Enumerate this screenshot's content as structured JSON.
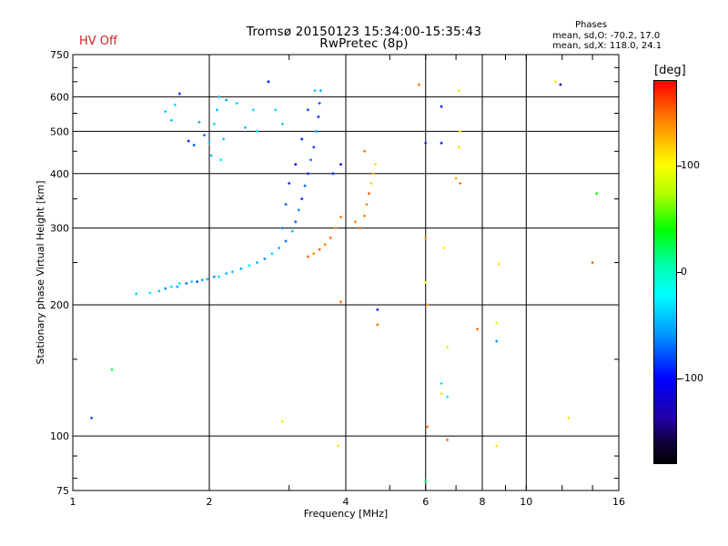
{
  "header": {
    "title_line1": "Tromsø 20150123 15:34:00-15:35:43",
    "title_line2": "RwPretec (8p)",
    "hv_status": "HV Off",
    "phases_label": "Phases",
    "phases_o": "mean, sd,O: -70.2, 17.0",
    "phases_x": "mean, sd,X: 118.0, 24.1"
  },
  "colorbar": {
    "unit": "[deg]",
    "ticks": [
      "100",
      "0",
      "-100"
    ],
    "tick_values": [
      100,
      0,
      -100
    ],
    "range": [
      -180,
      180
    ]
  },
  "colors": {
    "hv_status": "#d42020",
    "grid": "#000000"
  },
  "chart_data": {
    "type": "scatter",
    "title": "Tromsø 20150123 15:34:00-15:35:43",
    "subtitle": "RwPretec (8p)",
    "xlabel": "Frequency [MHz]",
    "ylabel": "Stationary phase Virtual Height [km]",
    "xscale": "log",
    "yscale": "log",
    "xlim": [
      1,
      16
    ],
    "ylim": [
      75,
      750
    ],
    "xticks": [
      1,
      2,
      4,
      6,
      8,
      10,
      16
    ],
    "yticks": [
      75,
      100,
      200,
      300,
      400,
      500,
      600,
      750
    ],
    "xgrid": [
      2,
      4,
      6,
      8,
      10
    ],
    "ygrid": [
      100,
      200,
      300,
      400,
      500,
      600
    ],
    "color_by": "phase [deg]",
    "points": [
      {
        "x": 1.38,
        "y": 212,
        "c": -40
      },
      {
        "x": 1.48,
        "y": 213,
        "c": -30
      },
      {
        "x": 1.55,
        "y": 215,
        "c": -45
      },
      {
        "x": 1.6,
        "y": 218,
        "c": -60
      },
      {
        "x": 1.65,
        "y": 220,
        "c": -35
      },
      {
        "x": 1.7,
        "y": 220,
        "c": -50
      },
      {
        "x": 1.72,
        "y": 224,
        "c": -30
      },
      {
        "x": 1.78,
        "y": 224,
        "c": -70
      },
      {
        "x": 1.83,
        "y": 226,
        "c": -40
      },
      {
        "x": 1.88,
        "y": 226,
        "c": -80
      },
      {
        "x": 1.93,
        "y": 228,
        "c": -55
      },
      {
        "x": 1.98,
        "y": 229,
        "c": -45
      },
      {
        "x": 2.05,
        "y": 232,
        "c": -60
      },
      {
        "x": 2.1,
        "y": 232,
        "c": -35
      },
      {
        "x": 2.18,
        "y": 236,
        "c": -50
      },
      {
        "x": 2.25,
        "y": 238,
        "c": -40
      },
      {
        "x": 2.35,
        "y": 242,
        "c": -55
      },
      {
        "x": 2.45,
        "y": 246,
        "c": -30
      },
      {
        "x": 2.55,
        "y": 250,
        "c": -45
      },
      {
        "x": 2.65,
        "y": 255,
        "c": -60
      },
      {
        "x": 2.75,
        "y": 262,
        "c": -35
      },
      {
        "x": 2.85,
        "y": 270,
        "c": -50
      },
      {
        "x": 2.95,
        "y": 280,
        "c": -70
      },
      {
        "x": 3.05,
        "y": 295,
        "c": -45
      },
      {
        "x": 3.1,
        "y": 310,
        "c": -80
      },
      {
        "x": 3.15,
        "y": 330,
        "c": -60
      },
      {
        "x": 3.2,
        "y": 350,
        "c": -90
      },
      {
        "x": 3.25,
        "y": 375,
        "c": -75
      },
      {
        "x": 3.3,
        "y": 400,
        "c": -95
      },
      {
        "x": 3.35,
        "y": 430,
        "c": -70
      },
      {
        "x": 3.4,
        "y": 460,
        "c": -85
      },
      {
        "x": 3.45,
        "y": 500,
        "c": -60
      },
      {
        "x": 3.48,
        "y": 540,
        "c": -90
      },
      {
        "x": 3.5,
        "y": 580,
        "c": -75
      },
      {
        "x": 3.52,
        "y": 620,
        "c": -50
      },
      {
        "x": 3.42,
        "y": 620,
        "c": -40
      },
      {
        "x": 3.3,
        "y": 560,
        "c": -80
      },
      {
        "x": 3.2,
        "y": 480,
        "c": -95
      },
      {
        "x": 3.1,
        "y": 420,
        "c": -100
      },
      {
        "x": 3.0,
        "y": 380,
        "c": -85
      },
      {
        "x": 2.95,
        "y": 340,
        "c": -75
      },
      {
        "x": 2.9,
        "y": 300,
        "c": -65
      },
      {
        "x": 1.6,
        "y": 555,
        "c": -40
      },
      {
        "x": 1.65,
        "y": 530,
        "c": -45
      },
      {
        "x": 1.68,
        "y": 575,
        "c": -35
      },
      {
        "x": 1.72,
        "y": 610,
        "c": -90
      },
      {
        "x": 1.8,
        "y": 475,
        "c": -95
      },
      {
        "x": 1.85,
        "y": 465,
        "c": -80
      },
      {
        "x": 1.9,
        "y": 525,
        "c": -50
      },
      {
        "x": 1.95,
        "y": 490,
        "c": -70
      },
      {
        "x": 2.0,
        "y": 470,
        "c": -45
      },
      {
        "x": 2.02,
        "y": 440,
        "c": -40
      },
      {
        "x": 2.05,
        "y": 520,
        "c": -35
      },
      {
        "x": 2.08,
        "y": 560,
        "c": -45
      },
      {
        "x": 2.1,
        "y": 600,
        "c": -50
      },
      {
        "x": 2.12,
        "y": 430,
        "c": -30
      },
      {
        "x": 2.15,
        "y": 480,
        "c": -40
      },
      {
        "x": 2.18,
        "y": 590,
        "c": -55
      },
      {
        "x": 2.3,
        "y": 580,
        "c": -40
      },
      {
        "x": 2.4,
        "y": 510,
        "c": -45
      },
      {
        "x": 2.5,
        "y": 560,
        "c": -35
      },
      {
        "x": 2.55,
        "y": 500,
        "c": -40
      },
      {
        "x": 2.7,
        "y": 650,
        "c": -100
      },
      {
        "x": 2.8,
        "y": 560,
        "c": -40
      },
      {
        "x": 2.9,
        "y": 520,
        "c": -45
      },
      {
        "x": 3.3,
        "y": 258,
        "c": 150
      },
      {
        "x": 3.4,
        "y": 262,
        "c": 140
      },
      {
        "x": 3.5,
        "y": 268,
        "c": 155
      },
      {
        "x": 3.6,
        "y": 275,
        "c": 145
      },
      {
        "x": 3.7,
        "y": 285,
        "c": 150
      },
      {
        "x": 3.8,
        "y": 300,
        "c": 140
      },
      {
        "x": 3.9,
        "y": 318,
        "c": 145
      },
      {
        "x": 4.3,
        "y": 300,
        "c": 150
      },
      {
        "x": 4.4,
        "y": 320,
        "c": 145
      },
      {
        "x": 4.45,
        "y": 340,
        "c": 140
      },
      {
        "x": 4.5,
        "y": 360,
        "c": 155
      },
      {
        "x": 4.55,
        "y": 380,
        "c": 120
      },
      {
        "x": 4.6,
        "y": 400,
        "c": 130
      },
      {
        "x": 4.65,
        "y": 420,
        "c": 110
      },
      {
        "x": 4.4,
        "y": 450,
        "c": 150
      },
      {
        "x": 4.2,
        "y": 310,
        "c": 145
      },
      {
        "x": 3.75,
        "y": 400,
        "c": -90
      },
      {
        "x": 3.9,
        "y": 420,
        "c": -100
      },
      {
        "x": 1.1,
        "y": 110,
        "c": -80
      },
      {
        "x": 1.22,
        "y": 142,
        "c": 30
      },
      {
        "x": 2.9,
        "y": 108,
        "c": 110
      },
      {
        "x": 3.85,
        "y": 95,
        "c": 110
      },
      {
        "x": 3.9,
        "y": 203,
        "c": 150
      },
      {
        "x": 4.7,
        "y": 180,
        "c": 150
      },
      {
        "x": 4.7,
        "y": 195,
        "c": -95
      },
      {
        "x": 5.8,
        "y": 640,
        "c": 150
      },
      {
        "x": 6.0,
        "y": 470,
        "c": -90
      },
      {
        "x": 6.0,
        "y": 285,
        "c": 140
      },
      {
        "x": 6.0,
        "y": 225,
        "c": 110
      },
      {
        "x": 6.05,
        "y": 200,
        "c": 140
      },
      {
        "x": 6.05,
        "y": 105,
        "c": 150
      },
      {
        "x": 6.0,
        "y": 79,
        "c": 20
      },
      {
        "x": 6.5,
        "y": 570,
        "c": -95
      },
      {
        "x": 6.5,
        "y": 470,
        "c": -95
      },
      {
        "x": 6.6,
        "y": 270,
        "c": 110
      },
      {
        "x": 6.7,
        "y": 160,
        "c": 110
      },
      {
        "x": 6.5,
        "y": 132,
        "c": -30
      },
      {
        "x": 6.7,
        "y": 123,
        "c": -30
      },
      {
        "x": 6.5,
        "y": 125,
        "c": 110
      },
      {
        "x": 6.7,
        "y": 98,
        "c": 150
      },
      {
        "x": 7.1,
        "y": 620,
        "c": 110
      },
      {
        "x": 7.15,
        "y": 500,
        "c": 110
      },
      {
        "x": 7.1,
        "y": 460,
        "c": 110
      },
      {
        "x": 7.0,
        "y": 390,
        "c": 130
      },
      {
        "x": 7.15,
        "y": 380,
        "c": 150
      },
      {
        "x": 7.8,
        "y": 176,
        "c": 150
      },
      {
        "x": 8.6,
        "y": 182,
        "c": 90
      },
      {
        "x": 8.6,
        "y": 165,
        "c": -60
      },
      {
        "x": 8.7,
        "y": 248,
        "c": 110
      },
      {
        "x": 8.6,
        "y": 95,
        "c": 110
      },
      {
        "x": 11.6,
        "y": 650,
        "c": 110
      },
      {
        "x": 11.9,
        "y": 640,
        "c": -140
      },
      {
        "x": 12.4,
        "y": 110,
        "c": 110
      },
      {
        "x": 14.0,
        "y": 250,
        "c": 150
      },
      {
        "x": 14.3,
        "y": 360,
        "c": 40
      }
    ]
  }
}
